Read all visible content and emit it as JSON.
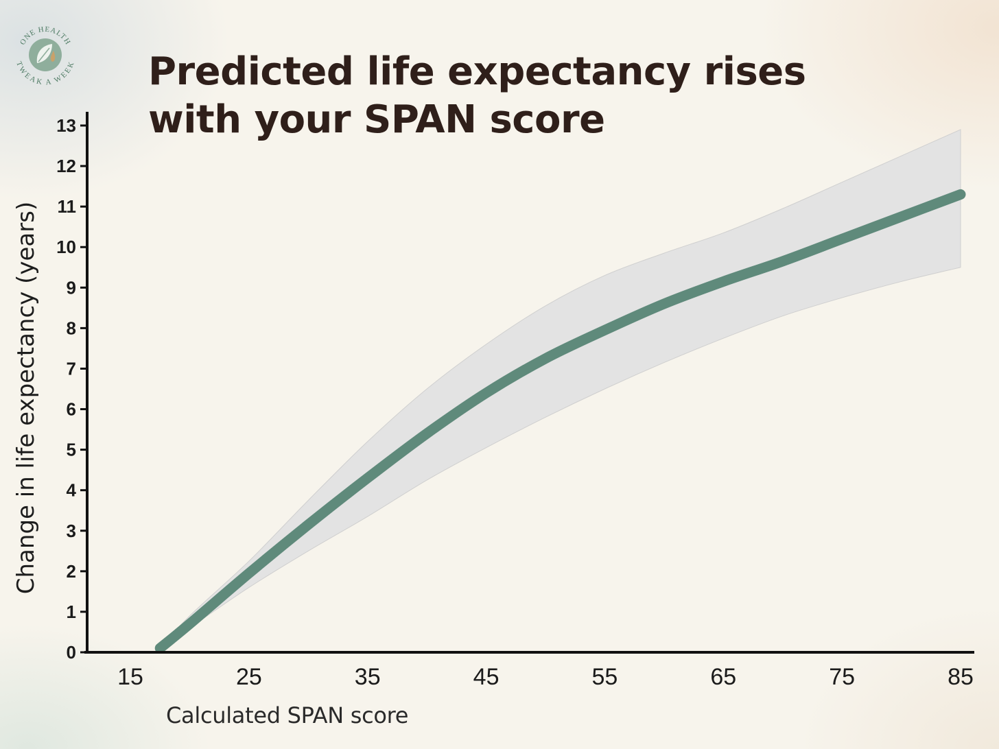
{
  "logo": {
    "text_top": "ONE HEALTH",
    "text_bottom": "TWEAK A WEEK",
    "icon": "leaf-drop-icon"
  },
  "chart_data": {
    "type": "line",
    "title_lines": [
      "Predicted life expectancy rises",
      "with your SPAN score"
    ],
    "xlabel": "Calculated SPAN score",
    "ylabel": "Change in life expectancy (years)",
    "xlim": [
      10,
      86
    ],
    "ylim": [
      0,
      13
    ],
    "xticks": [
      15,
      25,
      35,
      45,
      55,
      65,
      75,
      85
    ],
    "yticks": [
      0,
      1,
      2,
      3,
      4,
      5,
      6,
      7,
      8,
      9,
      10,
      11,
      12,
      13
    ],
    "grid": false,
    "colors": {
      "line": "#5f8a7b",
      "band": "#e3e3e3",
      "axis": "#111111"
    },
    "series": [
      {
        "x": [
          17.5,
          20,
          25,
          30,
          35,
          40,
          45,
          50,
          55,
          60,
          65,
          70,
          75,
          80,
          85
        ],
        "y": [
          0.1,
          0.7,
          1.95,
          3.15,
          4.3,
          5.4,
          6.4,
          7.25,
          7.95,
          8.6,
          9.15,
          9.65,
          10.2,
          10.75,
          11.3
        ],
        "ci_lower": [
          0.1,
          0.6,
          1.6,
          2.5,
          3.35,
          4.25,
          5.05,
          5.8,
          6.5,
          7.15,
          7.75,
          8.3,
          8.75,
          9.15,
          9.5
        ],
        "ci_upper": [
          0.1,
          0.9,
          2.25,
          3.75,
          5.2,
          6.5,
          7.6,
          8.55,
          9.3,
          9.85,
          10.35,
          10.95,
          11.6,
          12.25,
          12.9
        ]
      }
    ]
  }
}
